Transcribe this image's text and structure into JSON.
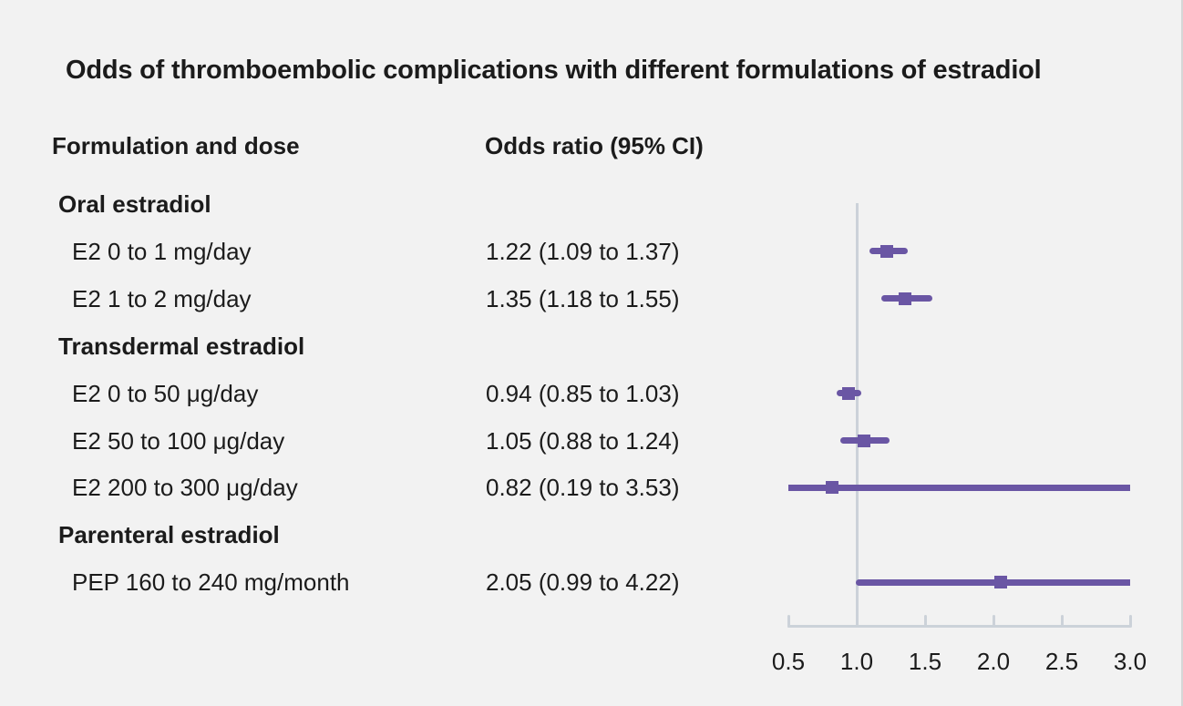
{
  "page": {
    "title": "Odds of thromboembolic complications with different formulations of estradiol"
  },
  "table": {
    "col_left": "Formulation and dose",
    "col_right": "Odds ratio (95% CI)"
  },
  "colors": {
    "background": "#f2f2f2",
    "text": "#1b1b1b",
    "marker": "#6a56a4",
    "axis": "#ccd2d9"
  },
  "chart_data": {
    "type": "forest",
    "title": "Odds of thromboembolic complications with different formulations of estradiol",
    "xlim": [
      0.5,
      3.0
    ],
    "reference_line": 1.0,
    "ticks": [
      0.5,
      1.0,
      1.5,
      2.0,
      2.5,
      3.0
    ],
    "tick_labels": [
      "0.5",
      "1.0",
      "1.5",
      "2.0",
      "2.5",
      "3.0"
    ],
    "groups": [
      {
        "label": "Oral estradiol",
        "items": [
          {
            "label": "E2 0 to 1 mg/day",
            "value_text": "1.22 (1.09 to 1.37)",
            "or": 1.22,
            "lo": 1.09,
            "hi": 1.37
          },
          {
            "label": "E2 1 to 2 mg/day",
            "value_text": "1.35 (1.18 to 1.55)",
            "or": 1.35,
            "lo": 1.18,
            "hi": 1.55
          }
        ]
      },
      {
        "label": "Transdermal estradiol",
        "items": [
          {
            "label": "E2 0 to 50 μg/day",
            "value_text": "0.94 (0.85 to 1.03)",
            "or": 0.94,
            "lo": 0.85,
            "hi": 1.03
          },
          {
            "label": "E2 50 to 100 μg/day",
            "value_text": "1.05 (0.88 to 1.24)",
            "or": 1.05,
            "lo": 0.88,
            "hi": 1.24
          },
          {
            "label": "E2 200 to 300 μg/day",
            "value_text": "0.82 (0.19 to 3.53)",
            "or": 0.82,
            "lo": 0.19,
            "hi": 3.53
          }
        ]
      },
      {
        "label": "Parenteral estradiol",
        "items": [
          {
            "label": "PEP 160 to 240 mg/month",
            "value_text": "2.05 (0.99 to 4.22)",
            "or": 2.05,
            "lo": 0.99,
            "hi": 4.22
          }
        ]
      }
    ]
  }
}
